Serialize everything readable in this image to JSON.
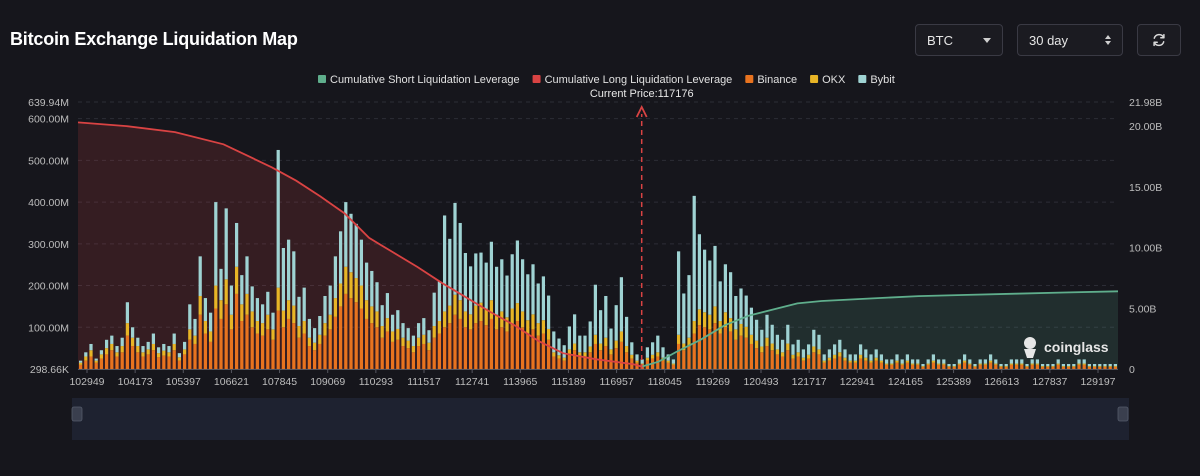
{
  "header": {
    "title": "Bitcoin Exchange Liquidation Map",
    "coin_select": "BTC",
    "period_select": "30 day",
    "refresh_icon": "refresh-icon"
  },
  "colors": {
    "short_cum": "#5fae8c",
    "long_cum": "#d94343",
    "binance": "#e8731f",
    "okx": "#e8b526",
    "bybit": "#9fd3d3",
    "background": "#16161c"
  },
  "chart_data": {
    "type": "bar",
    "title": "",
    "current_price_label": "Current Price:117176",
    "current_price": 117176,
    "watermark": "coinglass",
    "legend": [
      {
        "name": "Cumulative Short Liquidation Leverage",
        "color": "#5fae8c",
        "shape": "line"
      },
      {
        "name": "Cumulative Long Liquidation Leverage",
        "color": "#d94343",
        "shape": "line"
      },
      {
        "name": "Binance",
        "color": "#e8731f",
        "shape": "bar"
      },
      {
        "name": "OKX",
        "color": "#e8b526",
        "shape": "bar"
      },
      {
        "name": "Bybit",
        "color": "#9fd3d3",
        "shape": "bar"
      }
    ],
    "x_tick_labels": [
      "102949",
      "104173",
      "105397",
      "106621",
      "107845",
      "109069",
      "110293",
      "111517",
      "112741",
      "113965",
      "115189",
      "116957",
      "118045",
      "119269",
      "120493",
      "121717",
      "122941",
      "124165",
      "125389",
      "126613",
      "127837",
      "129197"
    ],
    "y_left": {
      "min": 0,
      "max": 639.94,
      "unit": "M",
      "tick_labels": [
        "298.66K",
        "100.00M",
        "200.00M",
        "300.00M",
        "400.00M",
        "500.00M",
        "600.00M",
        "639.94M"
      ],
      "tick_values": [
        0,
        100,
        200,
        300,
        400,
        500,
        600,
        639.94
      ]
    },
    "y_right": {
      "min": 0,
      "max": 21.98,
      "unit": "B",
      "tick_labels": [
        "0",
        "5.00B",
        "10.00B",
        "15.00B",
        "20.00B",
        "21.98B"
      ],
      "tick_values": [
        0,
        5,
        10,
        15,
        20,
        21.98
      ]
    },
    "x_range": [
      102949,
      129197
    ],
    "bar_width": 80,
    "series": [
      {
        "name": "Binance",
        "values": [
          10,
          20,
          30,
          15,
          25,
          35,
          45,
          30,
          40,
          80,
          55,
          40,
          30,
          35,
          45,
          28,
          32,
          30,
          45,
          20,
          35,
          70,
          60,
          130,
          85,
          65,
          145,
          120,
          155,
          95,
          180,
          115,
          130,
          100,
          85,
          80,
          95,
          70,
          140,
          100,
          120,
          110,
          75,
          85,
          55,
          45,
          60,
          80,
          95,
          125,
          150,
          180,
          170,
          160,
          145,
          120,
          110,
          100,
          75,
          90,
          65,
          70,
          55,
          50,
          40,
          55,
          60,
          45,
          75,
          85,
          100,
          110,
          130,
          120,
          100,
          95,
          110,
          115,
          105,
          120,
          95,
          100,
          90,
          105,
          115,
          100,
          85,
          95,
          80,
          85,
          70,
          30,
          25,
          20,
          35,
          45,
          30,
          30,
          40,
          60,
          45,
          55,
          35,
          50,
          65,
          40,
          25,
          15,
          10,
          20,
          25,
          30,
          20,
          15,
          10,
          60,
          45,
          55,
          85,
          105,
          100,
          95,
          110,
          85,
          100,
          90,
          70,
          80,
          75,
          60,
          50,
          40,
          55,
          45,
          35,
          30,
          45,
          25,
          30,
          20,
          25,
          40,
          35,
          15,
          20,
          25,
          30,
          20,
          15,
          15,
          25,
          20,
          15,
          20,
          15,
          10,
          10,
          15,
          10,
          15,
          10,
          10,
          5,
          10,
          15,
          10,
          10,
          5,
          5,
          10,
          15,
          10,
          5,
          10,
          10,
          15,
          10,
          5,
          5,
          10,
          10,
          10,
          5,
          10,
          10,
          5,
          5,
          5,
          10,
          5,
          5,
          5,
          10,
          10,
          5,
          5,
          5,
          5,
          5,
          5
        ]
      },
      {
        "name": "OKX",
        "values": [
          5,
          10,
          15,
          5,
          10,
          15,
          15,
          10,
          15,
          30,
          20,
          15,
          10,
          12,
          15,
          10,
          12,
          10,
          15,
          8,
          12,
          25,
          20,
          45,
          30,
          25,
          55,
          45,
          60,
          35,
          65,
          40,
          50,
          38,
          30,
          30,
          35,
          25,
          55,
          40,
          45,
          42,
          28,
          30,
          20,
          18,
          22,
          30,
          35,
          45,
          55,
          65,
          62,
          58,
          55,
          45,
          40,
          38,
          28,
          32,
          25,
          26,
          20,
          18,
          15,
          20,
          22,
          18,
          28,
          30,
          38,
          42,
          48,
          45,
          38,
          36,
          42,
          44,
          40,
          45,
          35,
          38,
          34,
          40,
          43,
          38,
          32,
          36,
          30,
          32,
          26,
          10,
          8,
          7,
          12,
          16,
          10,
          10,
          14,
          22,
          16,
          20,
          12,
          18,
          25,
          15,
          9,
          5,
          3,
          7,
          9,
          10,
          7,
          5,
          3,
          22,
          16,
          20,
          30,
          38,
          36,
          35,
          40,
          30,
          36,
          32,
          25,
          28,
          26,
          22,
          18,
          14,
          20,
          16,
          12,
          10,
          16,
          9,
          10,
          7,
          9,
          14,
          12,
          5,
          7,
          9,
          10,
          7,
          5,
          5,
          9,
          7,
          5,
          7,
          5,
          3,
          3,
          5,
          3,
          5,
          3,
          3,
          2,
          3,
          5,
          3,
          3,
          2,
          2,
          3,
          5,
          3,
          2,
          3,
          3,
          5,
          3,
          2,
          2,
          3,
          3,
          3,
          2,
          3,
          3,
          2,
          2,
          2,
          3,
          2,
          2,
          2,
          3,
          3,
          2,
          2,
          2,
          2,
          2,
          2
        ]
      },
      {
        "name": "Bybit",
        "values": [
          5,
          10,
          15,
          5,
          10,
          20,
          20,
          15,
          20,
          50,
          25,
          20,
          15,
          18,
          25,
          14,
          16,
          15,
          25,
          10,
          18,
          60,
          40,
          95,
          55,
          45,
          200,
          75,
          170,
          70,
          105,
          70,
          90,
          60,
          55,
          45,
          55,
          40,
          330,
          150,
          145,
          130,
          70,
          80,
          45,
          35,
          45,
          65,
          70,
          100,
          125,
          155,
          140,
          130,
          110,
          90,
          85,
          70,
          50,
          60,
          40,
          45,
          35,
          30,
          25,
          35,
          40,
          30,
          80,
          95,
          230,
          160,
          220,
          185,
          140,
          115,
          125,
          120,
          110,
          140,
          115,
          125,
          100,
          130,
          150,
          125,
          110,
          120,
          95,
          105,
          80,
          50,
          40,
          30,
          55,
          70,
          40,
          40,
          60,
          120,
          80,
          100,
          50,
          85,
          130,
          70,
          30,
          15,
          10,
          25,
          30,
          40,
          25,
          15,
          10,
          200,
          120,
          150,
          300,
          180,
          150,
          130,
          145,
          95,
          115,
          110,
          80,
          85,
          75,
          65,
          50,
          40,
          55,
          45,
          35,
          30,
          45,
          25,
          30,
          20,
          25,
          40,
          35,
          15,
          20,
          25,
          30,
          20,
          15,
          15,
          25,
          20,
          15,
          20,
          15,
          10,
          10,
          15,
          10,
          15,
          10,
          10,
          5,
          10,
          15,
          10,
          10,
          5,
          5,
          10,
          15,
          10,
          5,
          10,
          10,
          15,
          10,
          5,
          5,
          10,
          10,
          10,
          5,
          10,
          10,
          5,
          5,
          5,
          10,
          5,
          5,
          5,
          10,
          10,
          5,
          5,
          5,
          5,
          5,
          5
        ]
      },
      {
        "name": "Cumulative Long Liquidation Leverage",
        "axis": "right",
        "x": [
          102949,
          104173,
          105397,
          106621,
          107845,
          108457,
          109069,
          109681,
          110293,
          110905,
          111517,
          112129,
          112741,
          113353,
          113965,
          114577,
          115189,
          116031,
          116957,
          117176
        ],
        "values": [
          20.3,
          20.0,
          19.5,
          18.5,
          16.6,
          15.5,
          14.2,
          12.8,
          10.8,
          9.6,
          8.4,
          7.1,
          5.9,
          4.7,
          3.6,
          2.3,
          1.3,
          0.8,
          0.4,
          0.2
        ]
      },
      {
        "name": "Cumulative Short Liquidation Leverage",
        "axis": "right",
        "x": [
          117176,
          117600,
          118045,
          118657,
          119269,
          119881,
          120493,
          121105,
          121717,
          122941,
          124165,
          125389,
          126613,
          127837,
          129197
        ],
        "values": [
          0.2,
          0.6,
          1.4,
          2.4,
          3.6,
          4.4,
          4.9,
          5.4,
          5.6,
          5.8,
          6.0,
          6.1,
          6.2,
          6.3,
          6.4
        ]
      }
    ]
  }
}
